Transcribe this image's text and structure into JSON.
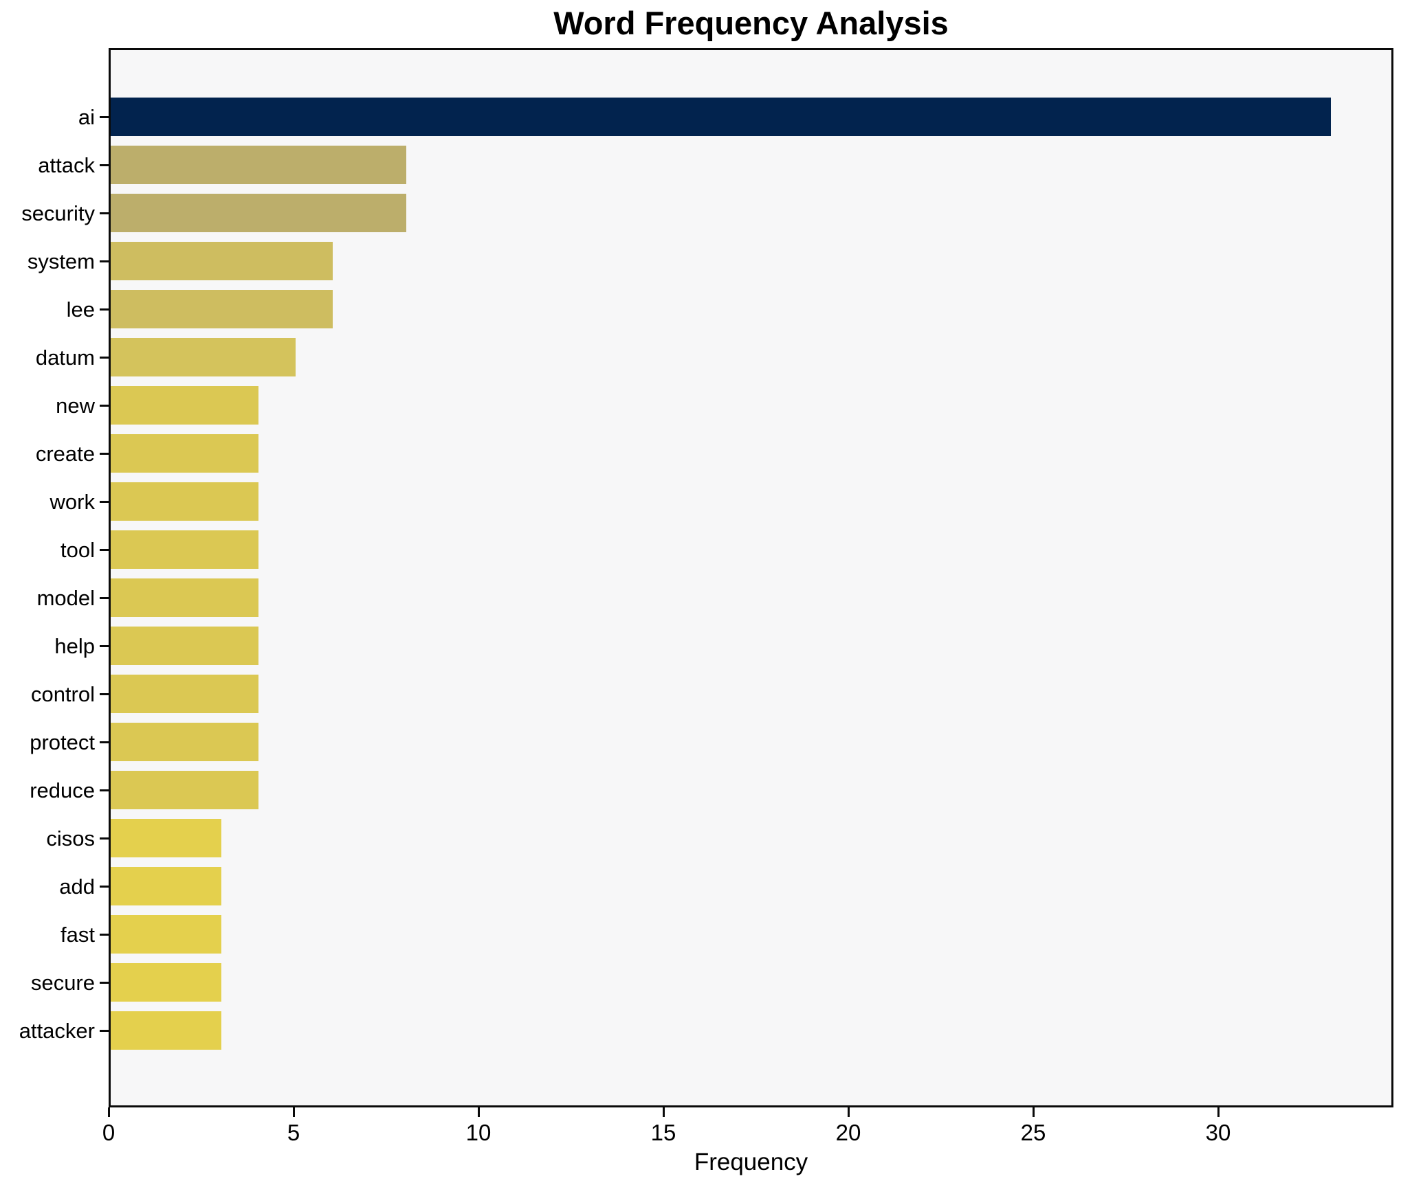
{
  "chart_data": {
    "type": "bar",
    "orientation": "horizontal",
    "title": "Word Frequency Analysis",
    "xlabel": "Frequency",
    "ylabel": "",
    "categories": [
      "ai",
      "attack",
      "security",
      "system",
      "lee",
      "datum",
      "new",
      "create",
      "work",
      "tool",
      "model",
      "help",
      "control",
      "protect",
      "reduce",
      "cisos",
      "add",
      "fast",
      "secure",
      "attacker"
    ],
    "values": [
      33,
      8,
      8,
      6,
      6,
      5,
      4,
      4,
      4,
      4,
      4,
      4,
      4,
      4,
      4,
      3,
      3,
      3,
      3,
      3
    ],
    "bar_colors": [
      "#02234e",
      "#bcae6b",
      "#bcae6b",
      "#cebd60",
      "#cebd60",
      "#d4c35c",
      "#dbc853",
      "#dbc853",
      "#dbc853",
      "#dbc853",
      "#dbc853",
      "#dbc853",
      "#dbc853",
      "#dbc853",
      "#dbc853",
      "#e4d04d",
      "#e4d04d",
      "#e4d04d",
      "#e4d04d",
      "#e4d04d"
    ],
    "xlim": [
      0,
      34.74
    ],
    "xticks": [
      0,
      5,
      10,
      15,
      20,
      25,
      30
    ],
    "grid": false,
    "legend": null,
    "plot_background": "#f7f7f8",
    "figure_background": "#ffffff"
  }
}
